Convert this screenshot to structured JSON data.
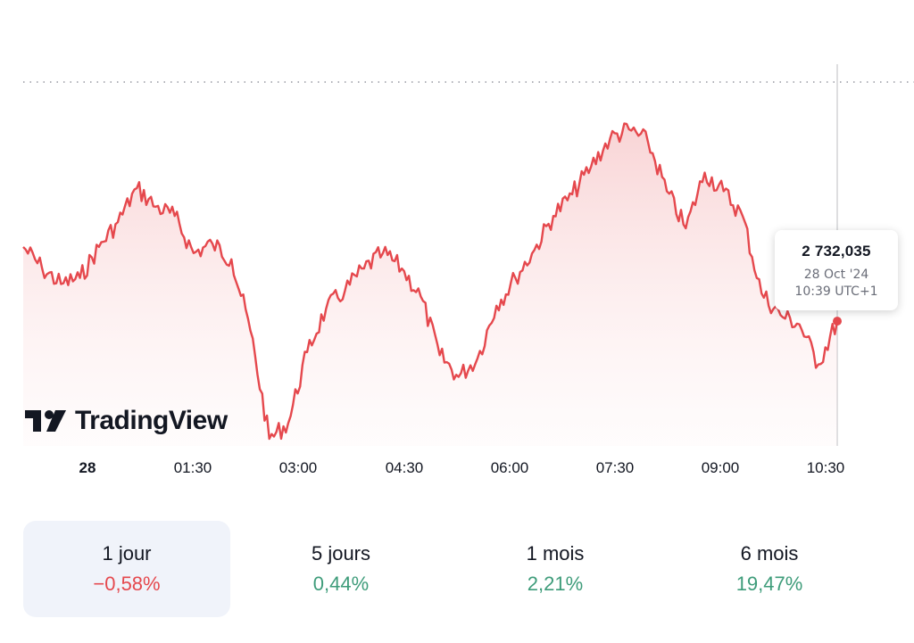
{
  "colors": {
    "line": "#e5484d",
    "fill_top": "#f7c7c9",
    "positive": "#3e9c7a",
    "negative": "#e5484d",
    "crosshair": "#c8c9cc",
    "dotted": "#9598a1"
  },
  "brand": {
    "name": "TradingView"
  },
  "tooltip": {
    "value": "2 732,035",
    "date": "28 Oct '24",
    "time": "10:39 UTC+1"
  },
  "periods": [
    {
      "label": "1 jour",
      "change": "−0,58%",
      "sign": "negative",
      "active": true
    },
    {
      "label": "5 jours",
      "change": "0,44%",
      "sign": "positive",
      "active": false
    },
    {
      "label": "1 mois",
      "change": "2,21%",
      "sign": "positive",
      "active": false
    },
    {
      "label": "6 mois",
      "change": "19,47%",
      "sign": "positive",
      "active": false
    }
  ],
  "chart_data": {
    "type": "area",
    "x_ticks": [
      "28",
      "01:30",
      "03:00",
      "04:30",
      "06:00",
      "07:30",
      "09:00",
      "10:30"
    ],
    "x": [
      "00:00",
      "00:15",
      "00:30",
      "00:45",
      "01:00",
      "01:15",
      "01:30",
      "01:45",
      "02:00",
      "02:15",
      "02:30",
      "02:45",
      "03:00",
      "03:15",
      "03:30",
      "03:45",
      "04:00",
      "04:15",
      "04:30",
      "04:45",
      "05:00",
      "05:15",
      "05:30",
      "05:45",
      "06:00",
      "06:15",
      "06:30",
      "06:45",
      "07:00",
      "07:15",
      "07:30",
      "07:45",
      "08:00",
      "08:15",
      "08:30",
      "08:45",
      "09:00",
      "09:15",
      "09:30",
      "09:45",
      "10:00",
      "10:15",
      "10:30",
      "10:39"
    ],
    "values": [
      0.62,
      0.55,
      0.5,
      0.52,
      0.62,
      0.7,
      0.81,
      0.75,
      0.72,
      0.6,
      0.63,
      0.58,
      0.35,
      0.0,
      0.05,
      0.28,
      0.42,
      0.48,
      0.55,
      0.6,
      0.55,
      0.46,
      0.27,
      0.2,
      0.26,
      0.43,
      0.52,
      0.61,
      0.72,
      0.79,
      0.88,
      0.97,
      1.0,
      0.96,
      0.8,
      0.68,
      0.86,
      0.8,
      0.72,
      0.47,
      0.4,
      0.37,
      0.24,
      0.38
    ],
    "reference_level": "previous close (dotted line)",
    "last_point": {
      "time": "10:39",
      "value": "2 732,035"
    },
    "grid": false
  }
}
